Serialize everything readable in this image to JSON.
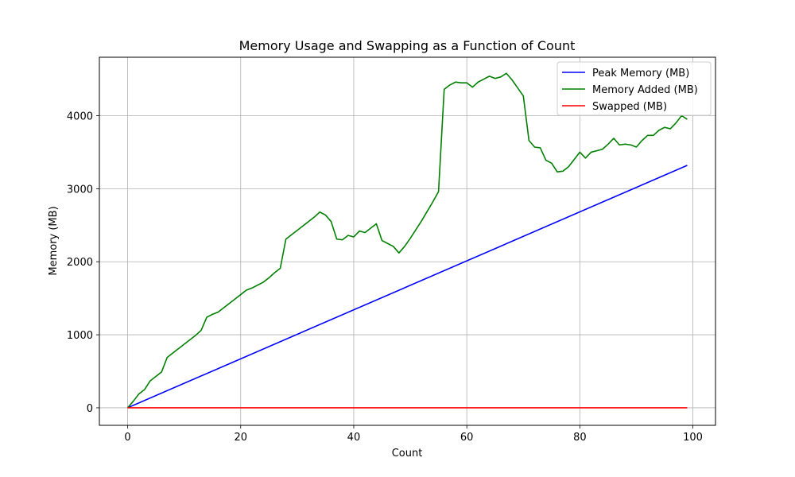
{
  "chart_data": {
    "type": "line",
    "title": "Memory Usage and Swapping as a Function of Count",
    "xlabel": "Count",
    "ylabel": "Memory (MB)",
    "xlim": [
      -5,
      104
    ],
    "ylim": [
      -240,
      4800
    ],
    "xticks": [
      0,
      20,
      40,
      60,
      80,
      100
    ],
    "yticks": [
      0,
      1000,
      2000,
      3000,
      4000
    ],
    "grid": true,
    "legend_position": "top-right",
    "series": [
      {
        "name": "Peak Memory (MB)",
        "color": "#0000ff",
        "x": [
          0,
          99
        ],
        "y": [
          0,
          3320
        ]
      },
      {
        "name": "Memory Added (MB)",
        "color": "#008000",
        "x": [
          0,
          1,
          2,
          3,
          4,
          5,
          6,
          7,
          8,
          9,
          10,
          11,
          12,
          13,
          14,
          15,
          16,
          17,
          18,
          19,
          20,
          21,
          22,
          23,
          24,
          25,
          26,
          27,
          28,
          29,
          30,
          31,
          32,
          33,
          34,
          35,
          36,
          37,
          38,
          39,
          40,
          41,
          42,
          43,
          44,
          45,
          46,
          47,
          48,
          49,
          50,
          51,
          52,
          53,
          54,
          55,
          56,
          57,
          58,
          59,
          60,
          61,
          62,
          63,
          64,
          65,
          66,
          67,
          68,
          69,
          70,
          71,
          72,
          73,
          74,
          75,
          76,
          77,
          78,
          79,
          80,
          81,
          82,
          83,
          84,
          85,
          86,
          87,
          88,
          89,
          90,
          91,
          92,
          93,
          94,
          95,
          96,
          97,
          98,
          99
        ],
        "y": [
          0,
          90,
          190,
          250,
          370,
          430,
          490,
          690,
          750,
          810,
          870,
          930,
          990,
          1060,
          1240,
          1280,
          1310,
          1370,
          1430,
          1490,
          1550,
          1610,
          1640,
          1680,
          1720,
          1780,
          1850,
          1910,
          2310,
          2370,
          2430,
          2490,
          2550,
          2610,
          2680,
          2640,
          2550,
          2310,
          2300,
          2360,
          2340,
          2420,
          2400,
          2460,
          2520,
          2290,
          2250,
          2210,
          2120,
          2210,
          2320,
          2440,
          2560,
          2690,
          2820,
          2960,
          4360,
          4420,
          4460,
          4450,
          4450,
          4390,
          4460,
          4500,
          4540,
          4510,
          4530,
          4580,
          4490,
          4380,
          4270,
          3660,
          3570,
          3560,
          3390,
          3350,
          3230,
          3240,
          3300,
          3400,
          3500,
          3420,
          3500,
          3520,
          3540,
          3610,
          3690,
          3600,
          3610,
          3600,
          3570,
          3660,
          3730,
          3730,
          3800,
          3840,
          3820,
          3900,
          4000,
          3950
        ]
      },
      {
        "name": "Swapped (MB)",
        "color": "#ff0000",
        "x": [
          0,
          99
        ],
        "y": [
          0,
          0
        ]
      }
    ]
  }
}
